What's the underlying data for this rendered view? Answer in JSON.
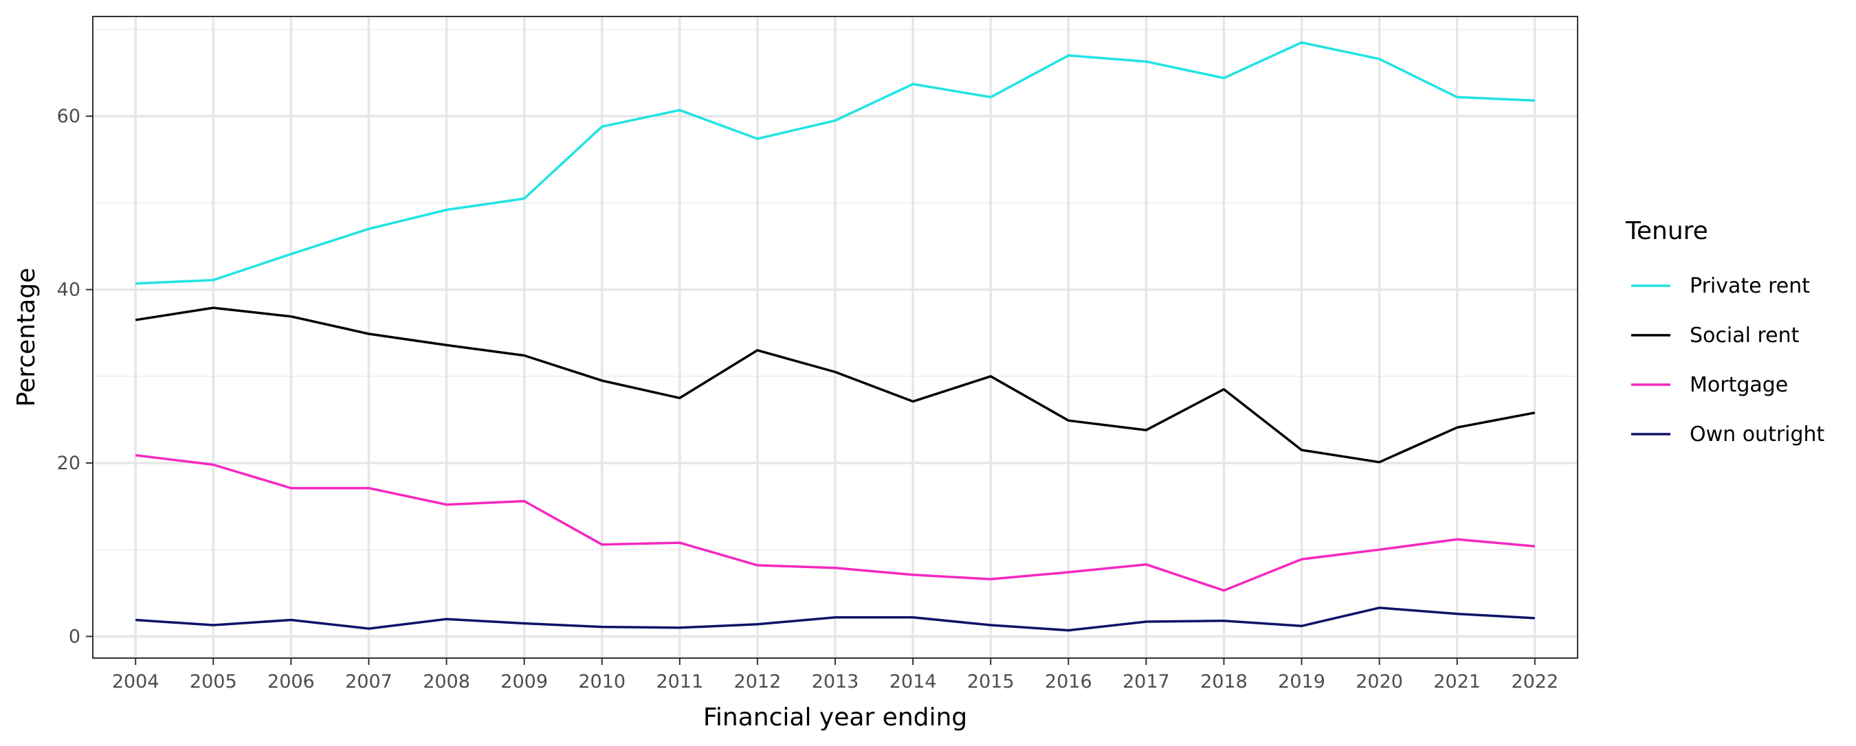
{
  "chart_data": {
    "type": "line",
    "xlabel": "Financial year ending",
    "ylabel": "Percentage",
    "x": [
      2004,
      2005,
      2006,
      2007,
      2008,
      2009,
      2010,
      2011,
      2012,
      2013,
      2014,
      2015,
      2016,
      2017,
      2018,
      2019,
      2020,
      2021,
      2022
    ],
    "x_ticks": [
      "2004",
      "2005",
      "2006",
      "2007",
      "2008",
      "2009",
      "2010",
      "2011",
      "2012",
      "2013",
      "2014",
      "2015",
      "2016",
      "2017",
      "2018",
      "2019",
      "2020",
      "2021",
      "2022"
    ],
    "xlim": [
      2003.45,
      2022.55
    ],
    "ylim": [
      -2.5,
      71.5
    ],
    "y_ticks": [
      0,
      20,
      40,
      60
    ],
    "y_tick_labels": [
      "0",
      "20",
      "40",
      "60"
    ],
    "grid": true,
    "legend": {
      "title": "Tenure",
      "position": "right"
    },
    "series": [
      {
        "name": "Private rent",
        "color": "#22E3E3",
        "values": [
          40.7,
          41.1,
          44.1,
          47.0,
          49.2,
          50.5,
          58.8,
          60.7,
          57.4,
          59.5,
          63.7,
          62.2,
          67.0,
          66.3,
          64.4,
          68.5,
          66.6,
          62.2,
          61.8
        ]
      },
      {
        "name": "Social rent",
        "color": "#000000",
        "values": [
          36.5,
          37.9,
          36.9,
          34.9,
          33.6,
          32.4,
          29.5,
          27.5,
          33.0,
          30.5,
          27.1,
          30.0,
          24.9,
          23.8,
          28.5,
          21.5,
          20.1,
          24.1,
          25.8
        ]
      },
      {
        "name": "Mortgage",
        "color": "#F528C0",
        "values": [
          20.9,
          19.8,
          17.1,
          17.1,
          15.2,
          15.6,
          10.6,
          10.8,
          8.2,
          7.9,
          7.1,
          6.6,
          7.4,
          8.3,
          5.3,
          8.9,
          10.0,
          11.2,
          10.4
        ]
      },
      {
        "name": "Own outright",
        "color": "#0E1267",
        "values": [
          1.9,
          1.3,
          1.9,
          0.9,
          2.0,
          1.5,
          1.1,
          1.0,
          1.4,
          2.2,
          2.2,
          1.3,
          0.7,
          1.7,
          1.8,
          1.2,
          3.3,
          2.6,
          2.1
        ]
      }
    ]
  }
}
